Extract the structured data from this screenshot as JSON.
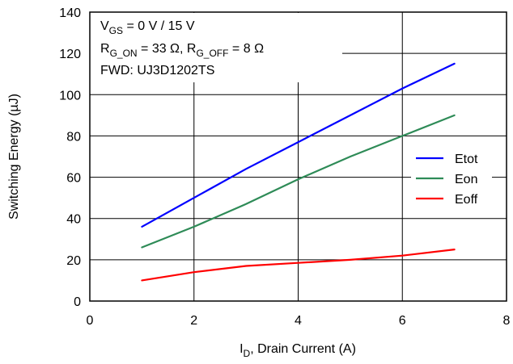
{
  "chart_data": {
    "type": "line",
    "title": "",
    "xlabel": {
      "main": "I",
      "sub": "D",
      "rest": ", Drain Current (A)"
    },
    "ylabel": "Switching Energy (µJ)",
    "xlim": [
      0,
      8
    ],
    "ylim": [
      0,
      140
    ],
    "xticks": [
      0,
      2,
      4,
      6,
      8
    ],
    "yticks": [
      0,
      20,
      40,
      60,
      80,
      100,
      120,
      140
    ],
    "grid": true,
    "legend_position": "right",
    "annotations": [
      {
        "main": "V",
        "sub": "GS",
        "rest": " = 0 V / 15 V"
      },
      {
        "main": "R",
        "sub": "G_ON",
        "rest": " = 33 Ω, R",
        "sub2": "G_OFF",
        "rest2": " = 8 Ω"
      },
      {
        "main": "FWD: UJ3D1202TS"
      }
    ],
    "series": [
      {
        "name": "Etot",
        "color": "#0000ff",
        "x": [
          1,
          2,
          3,
          4,
          5,
          6,
          7
        ],
        "y": [
          36,
          50,
          64,
          77,
          90,
          103,
          115
        ]
      },
      {
        "name": "Eon",
        "color": "#2e8b57",
        "x": [
          1,
          2,
          3,
          4,
          5,
          6,
          7
        ],
        "y": [
          26,
          36,
          47,
          59,
          70,
          80,
          90
        ]
      },
      {
        "name": "Eoff",
        "color": "#ff0000",
        "x": [
          1,
          2,
          3,
          4,
          5,
          6,
          7
        ],
        "y": [
          10,
          14,
          17,
          18.5,
          20,
          22,
          25
        ]
      }
    ]
  }
}
